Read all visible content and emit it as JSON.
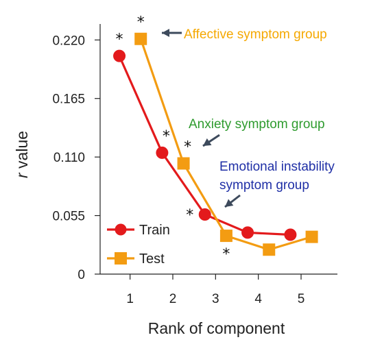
{
  "chart_data": {
    "type": "line",
    "xlabel": "Rank of component",
    "ylabel": "r value",
    "xlim": [
      0.3,
      5.85
    ],
    "ylim": [
      0,
      0.235
    ],
    "x_ticks": [
      {
        "value": 1,
        "label": "1"
      },
      {
        "value": 2,
        "label": "2"
      },
      {
        "value": 3,
        "label": "3"
      },
      {
        "value": 4,
        "label": "4"
      },
      {
        "value": 5,
        "label": "5"
      }
    ],
    "y_ticks": [
      {
        "value": 0,
        "label": "0"
      },
      {
        "value": 0.055,
        "label": "0.055"
      },
      {
        "value": 0.11,
        "label": "0.110"
      },
      {
        "value": 0.165,
        "label": "0.165"
      },
      {
        "value": 0.22,
        "label": "0.220"
      }
    ],
    "series": [
      {
        "name": "Train",
        "color": "#e31a1c",
        "marker": "circle",
        "x": [
          0.75,
          1.75,
          2.75,
          3.75,
          4.75
        ],
        "y": [
          0.205,
          0.114,
          0.056,
          0.039,
          0.037
        ],
        "significant": [
          true,
          true,
          true,
          false,
          false
        ]
      },
      {
        "name": "Test",
        "color": "#f39c12",
        "marker": "square",
        "x": [
          1.25,
          2.25,
          3.25,
          4.25,
          5.25
        ],
        "y": [
          0.221,
          0.104,
          0.036,
          0.023,
          0.035
        ],
        "significant": [
          true,
          true,
          true,
          false,
          false
        ]
      }
    ],
    "legend": {
      "position": "bottom-left",
      "entries": [
        "Train",
        "Test"
      ]
    },
    "annotations": [
      {
        "text": "Affective symptom group",
        "color": "#f5a800",
        "arrow_to": {
          "series": 1,
          "index": 0
        }
      },
      {
        "text": "Anxiety symptom group",
        "color": "#2e9b2e",
        "arrow_to": {
          "series": 1,
          "index": 1
        }
      },
      {
        "text": "Emotional instability",
        "color": "#1f2fa6",
        "arrow_to": {
          "series": 1,
          "index": 2
        }
      },
      {
        "text": "symptom group",
        "color": "#1f2fa6"
      }
    ],
    "significance_marker": "*",
    "grid": false
  }
}
